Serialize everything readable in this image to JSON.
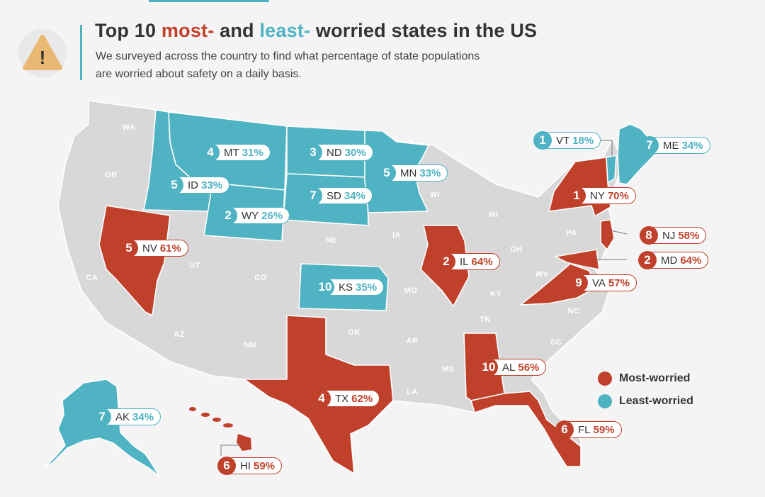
{
  "header": {
    "title_pre": "Top 10 ",
    "title_most": "most-",
    "title_mid": " and ",
    "title_least": "least-",
    "title_post": " worried states in the US",
    "subtitle": "We surveyed across the country to find what percentage of state populations are worried about safety on a daily basis.",
    "warning_glyph": "!"
  },
  "colors": {
    "most": "#c0412b",
    "least": "#4fb3c3",
    "neutral": "#d8d8d8",
    "border": "#ffffff"
  },
  "legend": {
    "most": "Most-worried",
    "least": "Least-worried"
  },
  "state_labels": [
    "WA",
    "OR",
    "CA",
    "UT",
    "CO",
    "NE",
    "AZ",
    "NM",
    "OK",
    "AR",
    "LA",
    "MS",
    "TN",
    "KY",
    "IA",
    "MO",
    "WI",
    "MI",
    "OH",
    "WV",
    "PA",
    "NC",
    "SC"
  ],
  "callouts": [
    {
      "group": "least",
      "rank": "1",
      "state": "VT",
      "percent": "18%"
    },
    {
      "group": "least",
      "rank": "7",
      "state": "ME",
      "percent": "34%"
    },
    {
      "group": "least",
      "rank": "4",
      "state": "MT",
      "percent": "31%"
    },
    {
      "group": "least",
      "rank": "3",
      "state": "ND",
      "percent": "30%"
    },
    {
      "group": "least",
      "rank": "5",
      "state": "MN",
      "percent": "33%"
    },
    {
      "group": "least",
      "rank": "5",
      "state": "ID",
      "percent": "33%"
    },
    {
      "group": "least",
      "rank": "7",
      "state": "SD",
      "percent": "34%"
    },
    {
      "group": "least",
      "rank": "2",
      "state": "WY",
      "percent": "26%"
    },
    {
      "group": "least",
      "rank": "10",
      "state": "KS",
      "percent": "35%"
    },
    {
      "group": "least",
      "rank": "7",
      "state": "AK",
      "percent": "34%"
    },
    {
      "group": "most",
      "rank": "1",
      "state": "NY",
      "percent": "70%"
    },
    {
      "group": "most",
      "rank": "8",
      "state": "NJ",
      "percent": "58%"
    },
    {
      "group": "most",
      "rank": "2",
      "state": "MD",
      "percent": "64%"
    },
    {
      "group": "most",
      "rank": "9",
      "state": "VA",
      "percent": "57%"
    },
    {
      "group": "most",
      "rank": "5",
      "state": "NV",
      "percent": "61%"
    },
    {
      "group": "most",
      "rank": "2",
      "state": "IL",
      "percent": "64%"
    },
    {
      "group": "most",
      "rank": "4",
      "state": "TX",
      "percent": "62%"
    },
    {
      "group": "most",
      "rank": "10",
      "state": "AL",
      "percent": "56%"
    },
    {
      "group": "most",
      "rank": "6",
      "state": "FL",
      "percent": "59%"
    },
    {
      "group": "most",
      "rank": "6",
      "state": "HI",
      "percent": "59%"
    }
  ]
}
